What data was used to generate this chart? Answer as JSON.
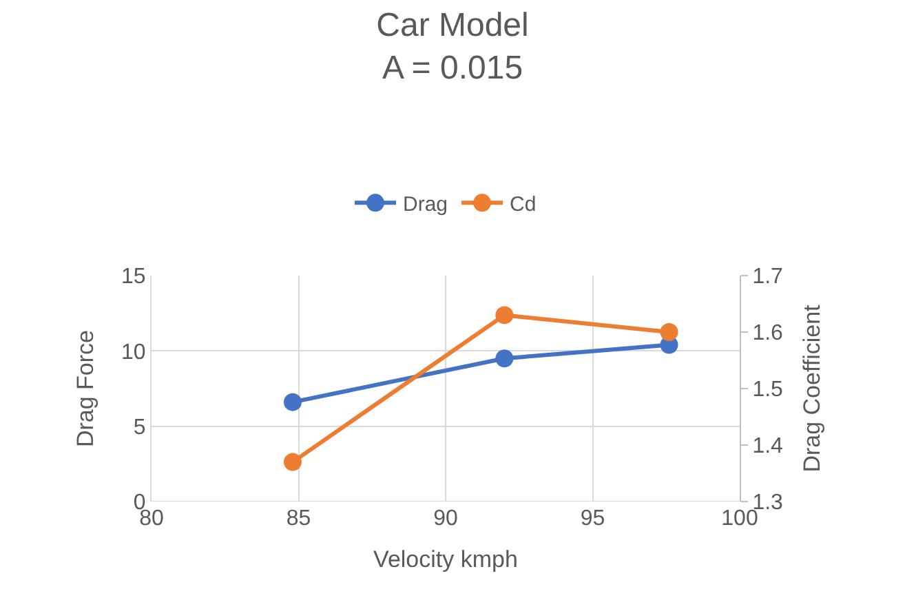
{
  "chart_data": {
    "type": "line",
    "title": "Car Model\nA = 0.015",
    "xlabel": "Velocity kmph",
    "ylabel": "Drag Force",
    "y2label": "Drag Coefficient",
    "x": [
      84.8,
      92.0,
      97.6
    ],
    "series": [
      {
        "name": "Drag",
        "color": "#4472c4",
        "values": [
          6.6,
          9.5,
          10.4
        ]
      },
      {
        "name": "Cd",
        "color": "#ed7d31",
        "values": [
          1.37,
          1.63,
          1.6
        ],
        "axis": "y2"
      }
    ],
    "xlim": [
      80,
      100
    ],
    "xticks": [
      80,
      85,
      90,
      95,
      100
    ],
    "ylim": [
      0,
      15
    ],
    "yticks": [
      0,
      5,
      10,
      15
    ],
    "y2lim": [
      1.3,
      1.7
    ],
    "y2ticks": [
      1.3,
      1.4,
      1.5,
      1.6,
      1.7
    ],
    "grid": true,
    "legend": "top",
    "marker": "circle",
    "line_style": "solid"
  }
}
